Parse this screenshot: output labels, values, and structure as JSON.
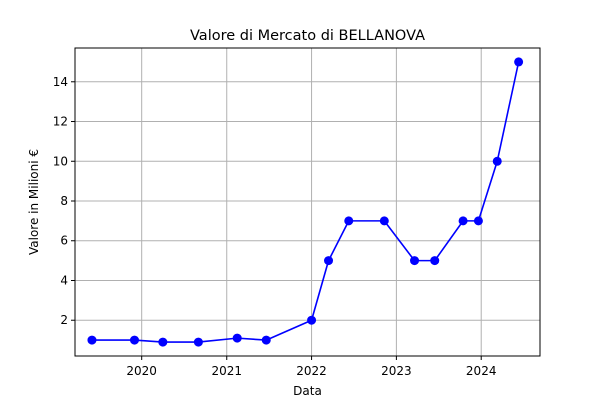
{
  "chart_data": {
    "type": "line",
    "title": "Valore di Mercato di BELLANOVA",
    "xlabel": "Data",
    "ylabel": "Valore in Milioni €",
    "x_axis_type": "date",
    "xlim": [
      "2019-03-20",
      "2024-09-10"
    ],
    "ylim": [
      0.2,
      15.7
    ],
    "x_ticks": [
      "2020-01-01",
      "2021-01-01",
      "2022-01-01",
      "2023-01-01",
      "2024-01-01"
    ],
    "x_tick_labels": [
      "2020",
      "2021",
      "2022",
      "2023",
      "2024"
    ],
    "y_ticks": [
      2,
      4,
      6,
      8,
      10,
      12,
      14
    ],
    "y_tick_labels": [
      "2",
      "4",
      "6",
      "8",
      "10",
      "12",
      "14"
    ],
    "grid": true,
    "color": "#0000ff",
    "marker": "circle",
    "series": [
      {
        "x": [
          "2019-06-01",
          "2019-12-01",
          "2020-04-01",
          "2020-09-01",
          "2021-02-15",
          "2021-06-20",
          "2022-01-01",
          "2022-03-15",
          "2022-06-10",
          "2022-11-10",
          "2023-03-20",
          "2023-06-15",
          "2023-10-15",
          "2023-12-20",
          "2024-03-10",
          "2024-06-10"
        ],
        "y": [
          1,
          1,
          0.9,
          0.9,
          1.1,
          1,
          2,
          5,
          7,
          7,
          5,
          5,
          7,
          7,
          10,
          15
        ]
      }
    ]
  }
}
